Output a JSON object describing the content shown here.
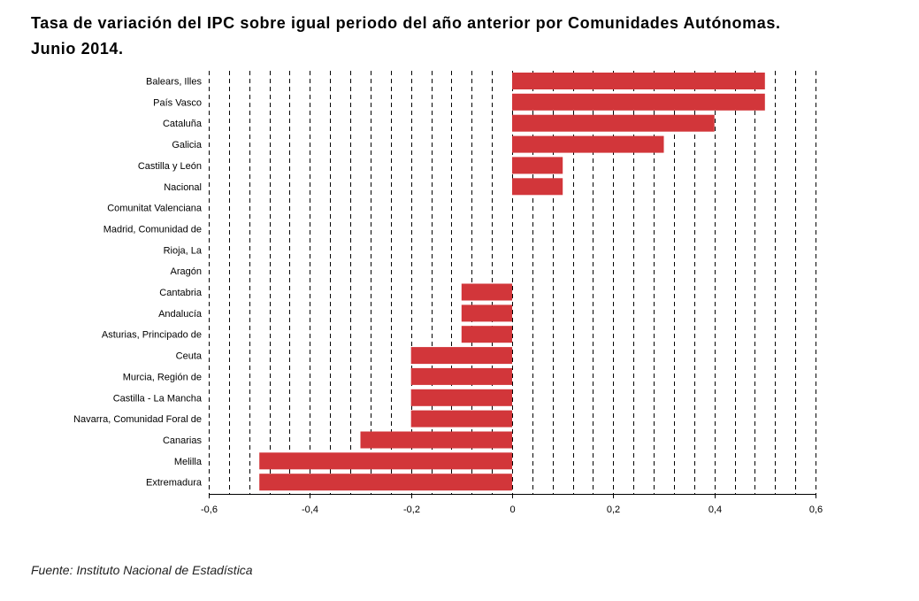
{
  "header": {
    "title_line1": "Tasa de variación del IPC sobre igual periodo del año anterior por Comunidades Autónomas.",
    "title_line2": "Junio 2014."
  },
  "footer": {
    "source": "Fuente: Instituto Nacional de Estadística"
  },
  "colors": {
    "bar": "#d2363a",
    "grid": "#000000"
  },
  "chart_data": {
    "type": "bar",
    "orientation": "horizontal",
    "categories": [
      "Balears, Illes",
      "País Vasco",
      "Cataluña",
      "Galicia",
      "Castilla y León",
      "Nacional",
      "Comunitat Valenciana",
      "Madrid, Comunidad de",
      "Rioja, La",
      "Aragón",
      "Cantabria",
      "Andalucía",
      "Asturias, Principado de",
      "Ceuta",
      "Murcia, Región de",
      "Castilla - La Mancha",
      "Navarra, Comunidad Foral de",
      "Canarias",
      "Melilla",
      "Extremadura"
    ],
    "values": [
      0.5,
      0.5,
      0.4,
      0.3,
      0.1,
      0.1,
      0,
      0,
      0,
      0,
      -0.1,
      -0.1,
      -0.1,
      -0.2,
      -0.2,
      -0.2,
      -0.2,
      -0.3,
      -0.5,
      -0.5
    ],
    "xlim": [
      -0.6,
      0.6
    ],
    "xticks": [
      -0.6,
      -0.4,
      -0.2,
      0,
      0.2,
      0.4,
      0.6
    ],
    "xtick_labels": [
      "-0,6",
      "-0,4",
      "-0,2",
      "0",
      "0,2",
      "0,4",
      "0,6"
    ],
    "grid": "vertical dashed",
    "legend": "none"
  }
}
